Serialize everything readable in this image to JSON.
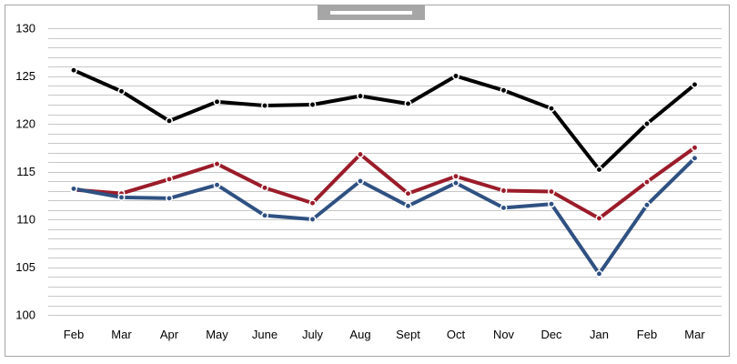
{
  "colors": {
    "grid": "#c7c7c7",
    "frame": "#a6a6a6",
    "title_tab": "#a6a6a6"
  },
  "chart_data": {
    "type": "line",
    "title": "",
    "xlabel": "",
    "ylabel": "",
    "categories": [
      "Feb",
      "Mar",
      "Apr",
      "May",
      "June",
      "July",
      "Aug",
      "Sept",
      "Oct",
      "Nov",
      "Dec",
      "Jan",
      "Feb",
      "Mar"
    ],
    "ylim": [
      100,
      130
    ],
    "yticks": [
      100,
      105,
      110,
      115,
      120,
      125,
      130
    ],
    "minor_grid_step": 1,
    "legend": "none",
    "series": [
      {
        "color": "#000000",
        "values": [
          125.6,
          123.4,
          120.3,
          122.3,
          121.9,
          122.0,
          122.9,
          122.1,
          125.0,
          123.5,
          121.6,
          115.2,
          120.0,
          124.1
        ]
      },
      {
        "color": "#9b1c2a",
        "values": [
          113.1,
          112.7,
          114.2,
          115.8,
          113.3,
          111.7,
          116.8,
          112.7,
          114.5,
          113.0,
          112.9,
          110.1,
          113.9,
          117.5
        ]
      },
      {
        "color": "#2f5182",
        "values": [
          113.2,
          112.3,
          112.2,
          113.6,
          110.4,
          110.0,
          114.0,
          111.4,
          113.8,
          111.2,
          111.6,
          104.3,
          111.5,
          116.4
        ]
      }
    ]
  }
}
